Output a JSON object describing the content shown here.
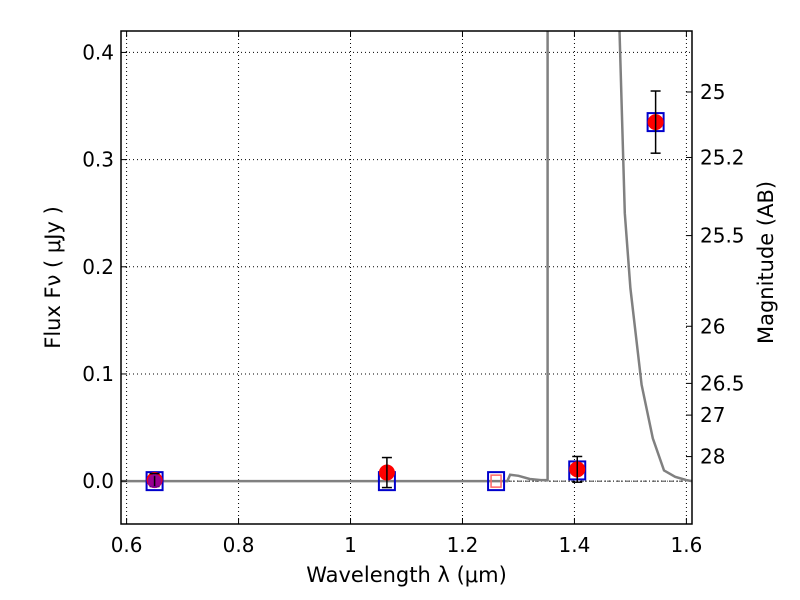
{
  "chart_data": {
    "type": "scatter",
    "title": "",
    "xlabel": "Wavelength  λ (μm)",
    "ylabel": "Flux  Fν  ( μJy )",
    "y2label": "Magnitude (AB)",
    "xlim": [
      0.59,
      1.61
    ],
    "ylim": [
      -0.04,
      0.42
    ],
    "grid": true,
    "x_ticks": [
      0.6,
      0.8,
      1.0,
      1.2,
      1.4,
      1.6
    ],
    "x_tick_labels": [
      "0.6",
      "0.8",
      "1",
      "1.2",
      "1.4",
      "1.6"
    ],
    "y_ticks": [
      0.0,
      0.1,
      0.2,
      0.3,
      0.4
    ],
    "y_tick_labels": [
      "0.0",
      "0.1",
      "0.2",
      "0.3",
      "0.4"
    ],
    "y2_ticks": [
      {
        "label": "25",
        "flux": 0.3631
      },
      {
        "label": "25.2",
        "flux": 0.302
      },
      {
        "label": "25.5",
        "flux": 0.2291
      },
      {
        "label": "26",
        "flux": 0.1445
      },
      {
        "label": "26.5",
        "flux": 0.0912
      },
      {
        "label": "27",
        "flux": 0.0616
      },
      {
        "label": "28",
        "flux": 0.0229
      }
    ],
    "model_sed": {
      "color": "#808080",
      "x": [
        0.59,
        1.28,
        1.285,
        1.3,
        1.32,
        1.34,
        1.352,
        1.352,
        1.48,
        1.49,
        1.5,
        1.52,
        1.54,
        1.56,
        1.58,
        1.6,
        1.61
      ],
      "y": [
        0.0,
        0.0,
        0.006,
        0.005,
        0.002,
        0.001,
        0.001,
        0.43,
        0.43,
        0.25,
        0.18,
        0.09,
        0.04,
        0.01,
        0.004,
        0.001,
        0.0
      ]
    },
    "observed": {
      "color": "#ff0000",
      "x": [
        0.65,
        1.065,
        1.405,
        1.545
      ],
      "y": [
        0.001,
        0.008,
        0.011,
        0.335
      ],
      "yerr": [
        0.006,
        0.014,
        0.012,
        0.029
      ]
    },
    "model_bands": {
      "color": "#0000cc",
      "x": [
        0.65,
        1.065,
        1.26,
        1.405,
        1.545
      ],
      "y": [
        0.0,
        0.0,
        0.0,
        0.01,
        0.335
      ]
    },
    "upper_limit_marker": {
      "color": "#ff6666",
      "x": 1.26,
      "y": 0.0
    },
    "low_marker": {
      "color": "#8800aa",
      "x": 0.65,
      "y": 0.0
    }
  }
}
